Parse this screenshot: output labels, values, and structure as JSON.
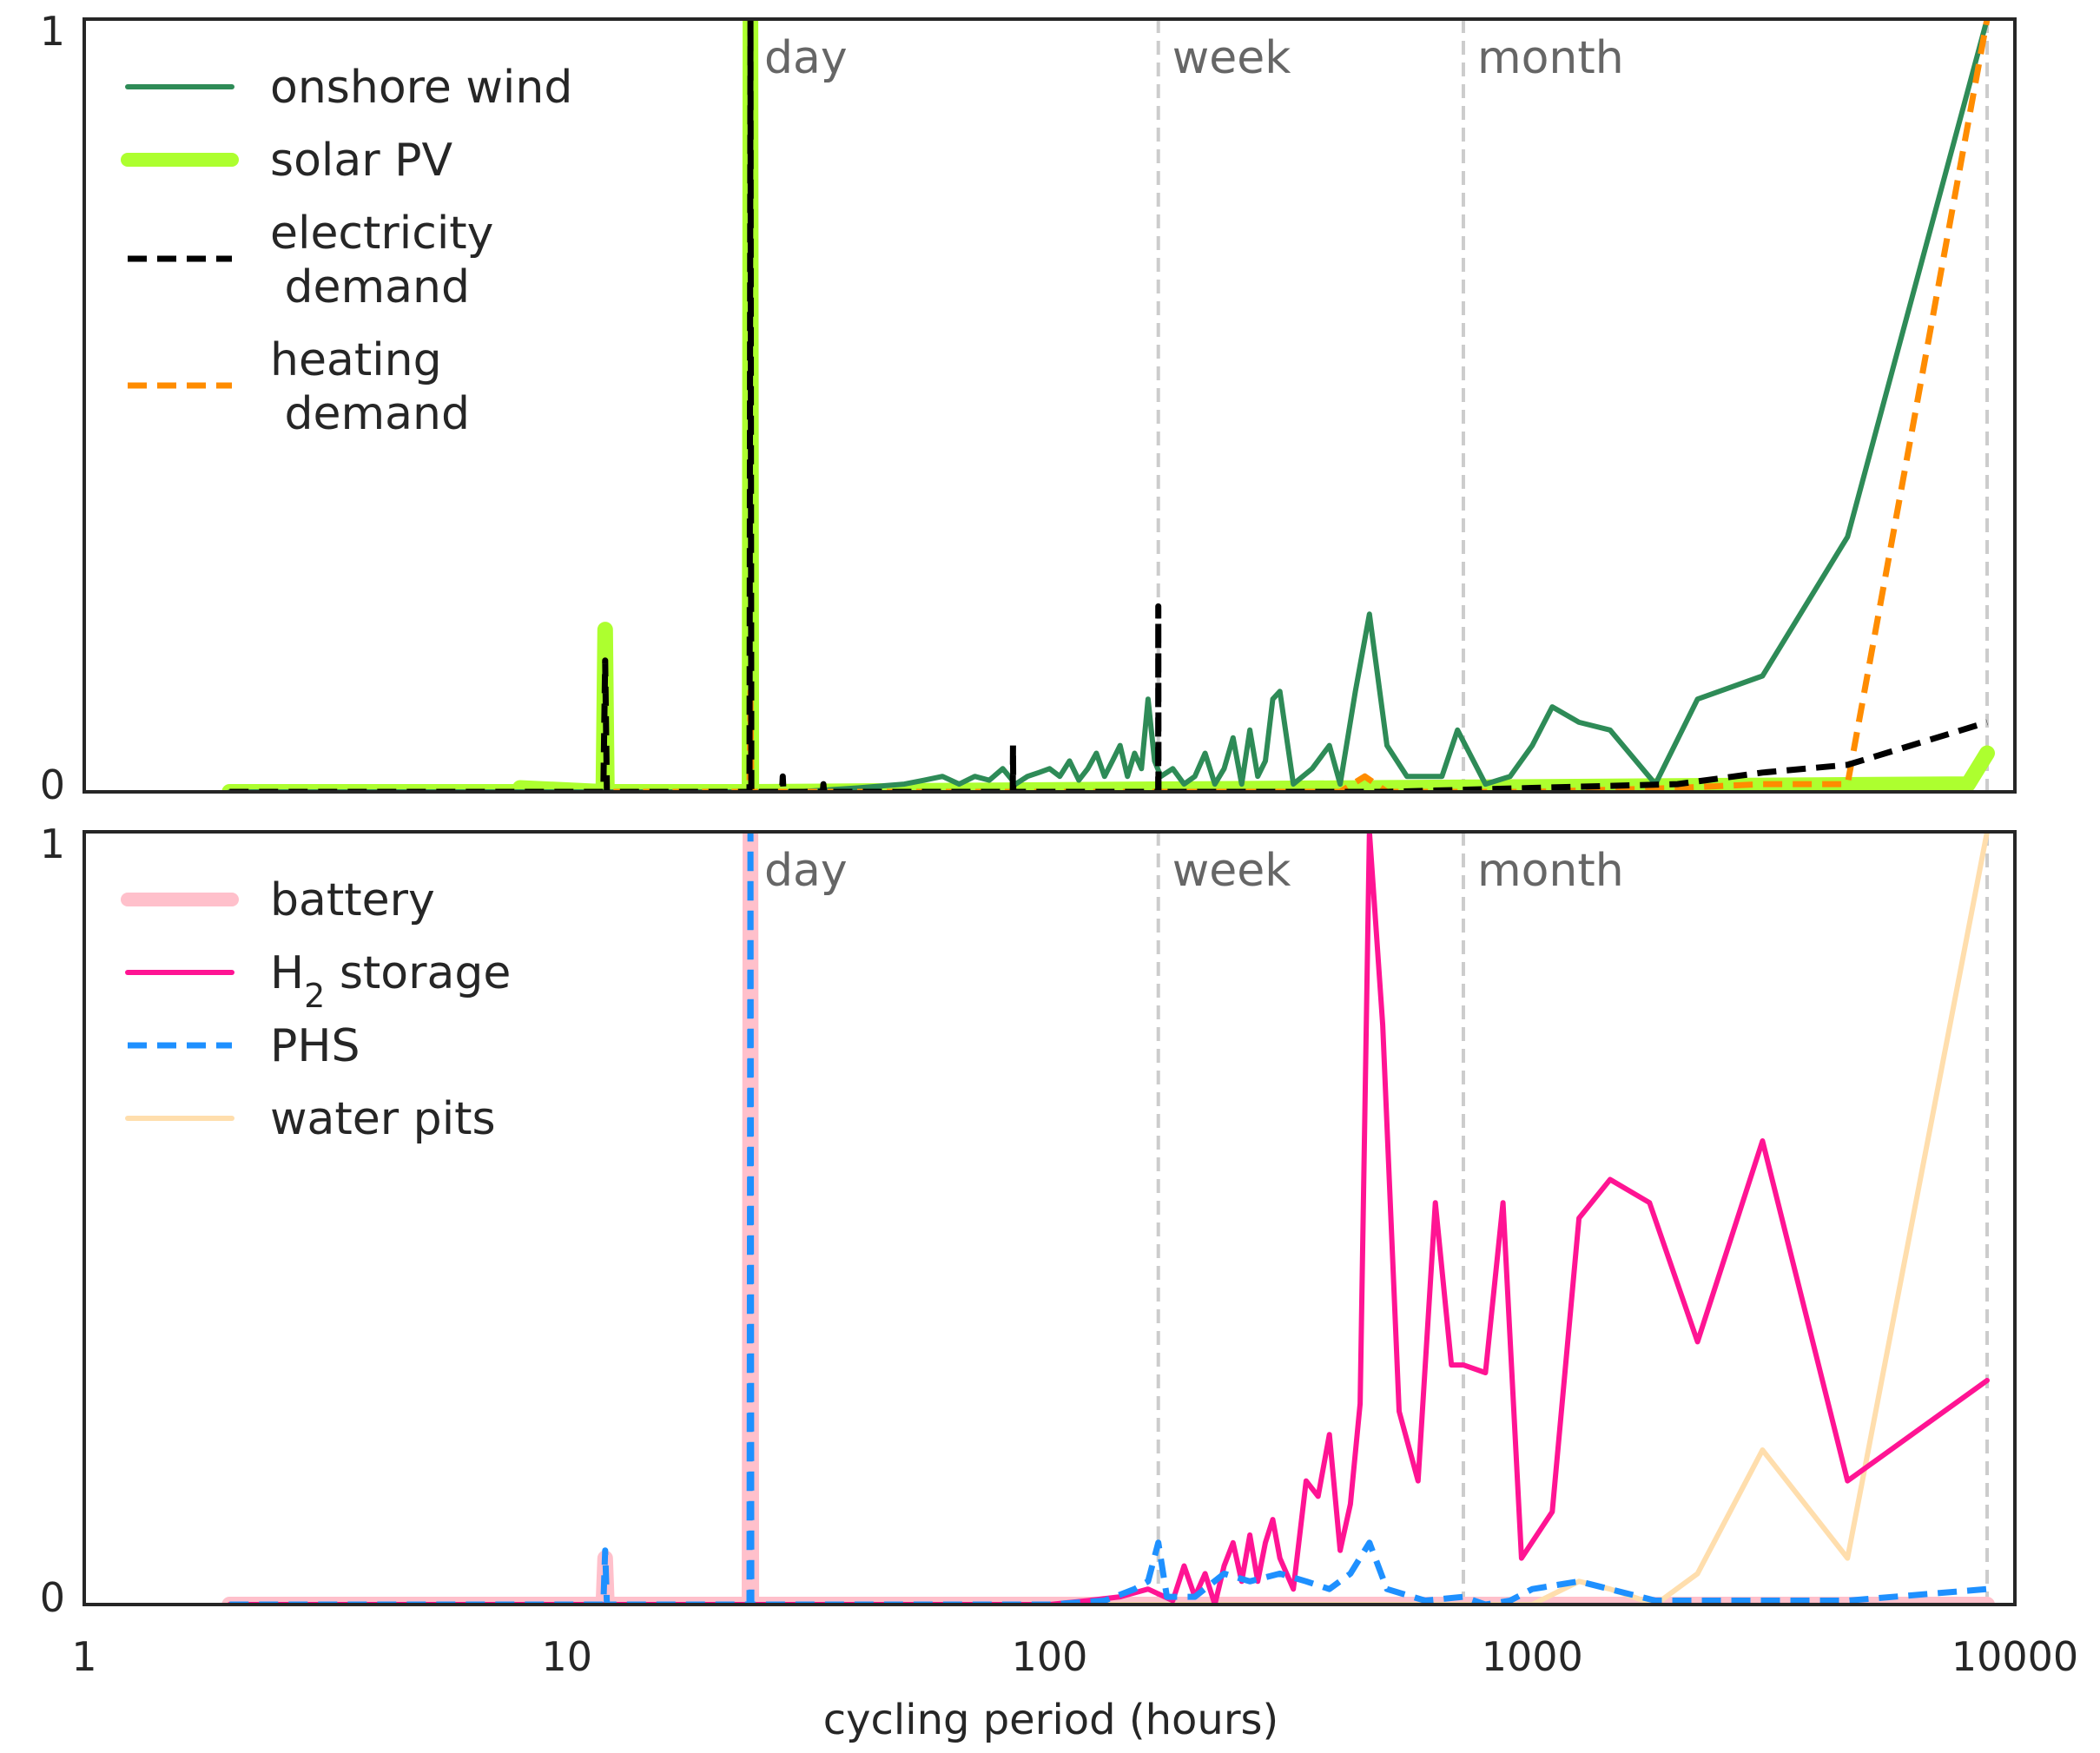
{
  "chart_data": [
    {
      "type": "line",
      "title": "",
      "xlabel": "",
      "ylabel": "",
      "xscale": "log",
      "xlim": [
        1,
        10000
      ],
      "ylim": [
        0,
        1
      ],
      "yticks": [
        "0",
        "1"
      ],
      "legend_placement": "top-left",
      "grid": false,
      "annotations": [
        {
          "label": "day",
          "x": 24
        },
        {
          "label": "week",
          "x": 168
        },
        {
          "label": "month",
          "x": 720
        }
      ],
      "series": [
        {
          "name": "onshore wind",
          "color": "#2e8b57",
          "style": "solid",
          "x": [
            2,
            5,
            10,
            20,
            30,
            40,
            50,
            55,
            60,
            65,
            70,
            75,
            80,
            85,
            90,
            95,
            100,
            105,
            110,
            115,
            120,
            125,
            130,
            135,
            140,
            145,
            150,
            155,
            160,
            165,
            170,
            180,
            190,
            200,
            210,
            220,
            230,
            240,
            250,
            260,
            270,
            280,
            290,
            300,
            320,
            350,
            380,
            400,
            430,
            460,
            500,
            550,
            600,
            650,
            700,
            800,
            900,
            1000,
            1100,
            1250,
            1450,
            1800,
            2200,
            3000,
            4500,
            8760
          ],
          "y": [
            0,
            0,
            0,
            0,
            0,
            0.005,
            0.01,
            0.015,
            0.02,
            0.01,
            0.02,
            0.015,
            0.03,
            0.01,
            0.02,
            0.025,
            0.03,
            0.02,
            0.04,
            0.015,
            0.03,
            0.05,
            0.02,
            0.04,
            0.06,
            0.02,
            0.05,
            0.03,
            0.12,
            0.04,
            0.02,
            0.03,
            0.01,
            0.02,
            0.05,
            0.01,
            0.03,
            0.07,
            0.01,
            0.08,
            0.02,
            0.04,
            0.12,
            0.13,
            0.01,
            0.03,
            0.06,
            0.01,
            0.13,
            0.23,
            0.06,
            0.02,
            0.02,
            0.02,
            0.08,
            0.01,
            0.02,
            0.06,
            0.11,
            0.09,
            0.08,
            0.01,
            0.12,
            0.15,
            0.33,
            1.0
          ]
        },
        {
          "name": "solar PV",
          "color": "#adff2f",
          "style": "solid",
          "x": [
            2,
            7.9,
            8,
            11.9,
            12,
            12.1,
            23.9,
            24,
            24.1,
            8000,
            8760
          ],
          "y": [
            0,
            0,
            0.005,
            0,
            0.21,
            0,
            0,
            1.0,
            0,
            0.01,
            0.05
          ]
        },
        {
          "name": "electricity\n demand",
          "color": "#000000",
          "style": "dashed",
          "x": [
            2,
            11.9,
            12,
            12.1,
            23.9,
            24,
            24.1,
            27.9,
            28,
            28.1,
            33.9,
            34,
            34.1,
            83.9,
            84,
            84.1,
            167.9,
            168,
            168.1,
            500,
            1000,
            2000,
            3000,
            4500,
            8760
          ],
          "y": [
            0,
            0,
            0.17,
            0,
            0,
            1.0,
            0,
            0,
            0.02,
            0,
            0,
            0.01,
            0,
            0,
            0.06,
            0,
            0,
            0.24,
            0,
            0,
            0.005,
            0.01,
            0.025,
            0.035,
            0.09
          ]
        },
        {
          "name": "heating\n demand",
          "color": "#ff8c00",
          "style": "dashed",
          "x": [
            2,
            23.9,
            24,
            24.1,
            400,
            450,
            500,
            1000,
            2000,
            3000,
            4500,
            8760
          ],
          "y": [
            0,
            0,
            0.13,
            0,
            0,
            0.02,
            0,
            0,
            0.005,
            0.01,
            0.01,
            1.0
          ]
        }
      ]
    },
    {
      "type": "line",
      "title": "",
      "xlabel": "cycling period (hours)",
      "ylabel": "",
      "xscale": "log",
      "xlim": [
        1,
        10000
      ],
      "ylim": [
        0,
        1
      ],
      "xticks": [
        "1",
        "10",
        "100",
        "1000",
        "10000"
      ],
      "yticks": [
        "0",
        "1"
      ],
      "legend_placement": "top-left",
      "grid": false,
      "annotations": [
        {
          "label": "day",
          "x": 24
        },
        {
          "label": "week",
          "x": 168
        },
        {
          "label": "month",
          "x": 720
        }
      ],
      "series": [
        {
          "name": "battery",
          "color": "#ffc0cb",
          "style": "solid",
          "x": [
            2,
            11.9,
            12,
            12.1,
            23.9,
            24,
            24.1,
            8760
          ],
          "y": [
            0,
            0,
            0.06,
            0,
            0,
            1.0,
            0,
            0
          ]
        },
        {
          "name": "H",
          "name_sub": "2",
          "name_suffix": " storage",
          "color": "#ff1493",
          "style": "solid",
          "x": [
            2,
            100,
            120,
            140,
            160,
            180,
            190,
            200,
            210,
            220,
            230,
            240,
            250,
            260,
            270,
            280,
            290,
            300,
            320,
            340,
            360,
            380,
            400,
            420,
            440,
            460,
            490,
            530,
            580,
            630,
            680,
            720,
            800,
            870,
            950,
            1100,
            1250,
            1450,
            1750,
            2200,
            3000,
            4500,
            8760
          ],
          "y": [
            0,
            0,
            0.005,
            0.01,
            0.02,
            0.005,
            0.05,
            0.01,
            0.04,
            0.0,
            0.05,
            0.08,
            0.03,
            0.09,
            0.03,
            0.08,
            0.11,
            0.06,
            0.02,
            0.16,
            0.14,
            0.22,
            0.07,
            0.13,
            0.26,
            1.0,
            0.75,
            0.25,
            0.16,
            0.52,
            0.31,
            0.31,
            0.3,
            0.52,
            0.06,
            0.12,
            0.5,
            0.55,
            0.52,
            0.34,
            0.6,
            0.16,
            0.29
          ]
        },
        {
          "name": "PHS",
          "color": "#1e90ff",
          "style": "dashed",
          "x": [
            2,
            11.9,
            12,
            12.1,
            23.9,
            24,
            24.1,
            100,
            130,
            150,
            160,
            168,
            175,
            200,
            230,
            260,
            300,
            340,
            380,
            420,
            460,
            500,
            600,
            720,
            800,
            900,
            1000,
            1250,
            1800,
            3000,
            4500,
            8760
          ],
          "y": [
            0,
            0,
            0.07,
            0,
            0,
            1.0,
            0,
            0,
            0.005,
            0.02,
            0.03,
            0.08,
            0.01,
            0.01,
            0.04,
            0.03,
            0.04,
            0.03,
            0.02,
            0.04,
            0.08,
            0.02,
            0.005,
            0.01,
            0.0,
            0.005,
            0.02,
            0.03,
            0.005,
            0.005,
            0.005,
            0.02
          ]
        },
        {
          "name": "water pits",
          "color": "#ffdead",
          "style": "solid",
          "x": [
            2,
            1000,
            1250,
            1450,
            1800,
            2200,
            3000,
            4500,
            8760
          ],
          "y": [
            0,
            0,
            0.03,
            0.02,
            0.0,
            0.04,
            0.2,
            0.06,
            1.0
          ]
        }
      ]
    }
  ]
}
